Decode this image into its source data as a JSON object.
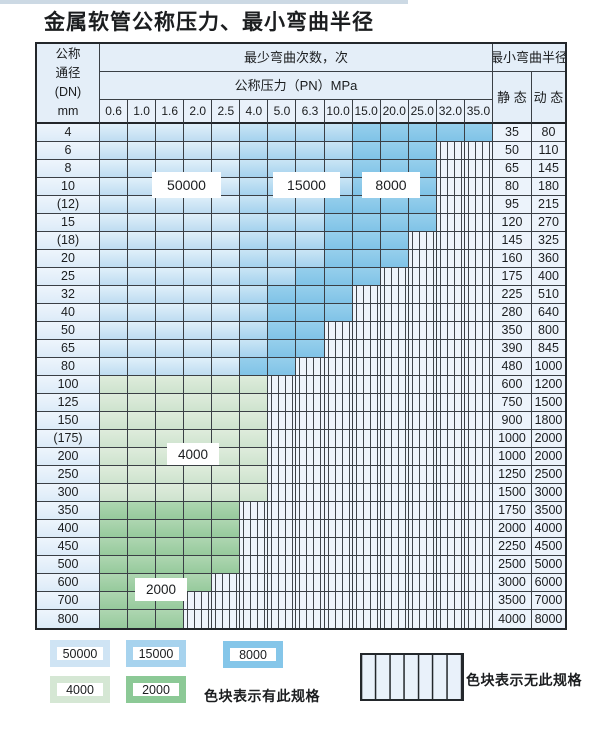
{
  "title": "金属软管公称压力、最小弯曲半径",
  "table": {
    "header": {
      "dn_label_lines": [
        "公称",
        "通径",
        "(DN)",
        "mm"
      ],
      "cycles_label": "最少弯曲次数，次",
      "pressure_label": "公称压力（PN）MPa",
      "radius_label": "最小弯曲半径",
      "static_label": "静 态",
      "dynamic_label": "动 态",
      "pressures": [
        "0.6",
        "1.0",
        "1.6",
        "2.0",
        "2.5",
        "4.0",
        "5.0",
        "6.3",
        "10.0",
        "15.0",
        "20.0",
        "25.0",
        "32.0",
        "35.0"
      ]
    },
    "cell_code_legend": {
      "L": "50000次",
      "M": "15000次",
      "D": "8000次",
      "A": "4000次",
      "B": "2000次",
      "H": "无此规格"
    },
    "rows": [
      {
        "dn": "4",
        "cells": "LLLLLMMMMDDDDD",
        "static": "35",
        "dynamic": "80"
      },
      {
        "dn": "6",
        "cells": "LLLLLMMMMDDDHH",
        "static": "50",
        "dynamic": "110"
      },
      {
        "dn": "8",
        "cells": "LLLLLMMMMDDDHH",
        "static": "65",
        "dynamic": "145"
      },
      {
        "dn": "10",
        "cells": "LLLLLMMMMDDDHH",
        "static": "80",
        "dynamic": "180"
      },
      {
        "dn": "(12)",
        "cells": "LLLLLMMMDDDDHH",
        "static": "95",
        "dynamic": "215"
      },
      {
        "dn": "15",
        "cells": "LLLLLMMMDDDDHH",
        "static": "120",
        "dynamic": "270"
      },
      {
        "dn": "(18)",
        "cells": "LLLLLMMMDDDHHH",
        "static": "145",
        "dynamic": "325"
      },
      {
        "dn": "20",
        "cells": "LLLLLMMMDDDHHH",
        "static": "160",
        "dynamic": "360"
      },
      {
        "dn": "25",
        "cells": "LLLLLMMDDDHHHH",
        "static": "175",
        "dynamic": "400"
      },
      {
        "dn": "32",
        "cells": "LLLLLMDDDHHHHH",
        "static": "225",
        "dynamic": "510"
      },
      {
        "dn": "40",
        "cells": "LLLLLMDDDHHHHH",
        "static": "280",
        "dynamic": "640"
      },
      {
        "dn": "50",
        "cells": "LLLLLMDDHHHHHH",
        "static": "350",
        "dynamic": "800"
      },
      {
        "dn": "65",
        "cells": "LLLLLMDDHHHHHH",
        "static": "390",
        "dynamic": "845"
      },
      {
        "dn": "80",
        "cells": "LLLLLDDHHHHHHH",
        "static": "480",
        "dynamic": "1000"
      },
      {
        "dn": "100",
        "cells": "AAAAAAHHHHHHHH",
        "static": "600",
        "dynamic": "1200"
      },
      {
        "dn": "125",
        "cells": "AAAAAAHHHHHHHH",
        "static": "750",
        "dynamic": "1500"
      },
      {
        "dn": "150",
        "cells": "AAAAAAHHHHHHHH",
        "static": "900",
        "dynamic": "1800"
      },
      {
        "dn": "(175)",
        "cells": "AAAAAAHHHHHHHH",
        "static": "1000",
        "dynamic": "2000"
      },
      {
        "dn": "200",
        "cells": "AAAAAAHHHHHHHH",
        "static": "1000",
        "dynamic": "2000"
      },
      {
        "dn": "250",
        "cells": "AAAAAAHHHHHHHH",
        "static": "1250",
        "dynamic": "2500"
      },
      {
        "dn": "300",
        "cells": "AAAAAAHHHHHHHH",
        "static": "1500",
        "dynamic": "3000"
      },
      {
        "dn": "350",
        "cells": "BBBBBHHHHHHHHH",
        "static": "1750",
        "dynamic": "3500"
      },
      {
        "dn": "400",
        "cells": "BBBBBHHHHHHHHH",
        "static": "2000",
        "dynamic": "4000"
      },
      {
        "dn": "450",
        "cells": "BBBBBHHHHHHHHH",
        "static": "2250",
        "dynamic": "4500"
      },
      {
        "dn": "500",
        "cells": "BBBBBHHHHHHHHH",
        "static": "2500",
        "dynamic": "5000"
      },
      {
        "dn": "600",
        "cells": "BBBBHHHHHHHHHH",
        "static": "3000",
        "dynamic": "6000"
      },
      {
        "dn": "700",
        "cells": "BBBHHHHHHHHHHH",
        "static": "3500",
        "dynamic": "7000"
      },
      {
        "dn": "800",
        "cells": "BBBHHHHHHHHHHH",
        "static": "4000",
        "dynamic": "8000"
      }
    ]
  },
  "overlay_labels": [
    "50000",
    "15000",
    "8000",
    "4000",
    "2000"
  ],
  "legend": {
    "chips": [
      {
        "label": "50000",
        "color": "#cfe4f4"
      },
      {
        "label": "15000",
        "color": "#a7d3ee"
      },
      {
        "label": "8000",
        "color": "#85c6e9"
      },
      {
        "label": "4000",
        "color": "#d5e7d4"
      },
      {
        "label": "2000",
        "color": "#8cc996"
      }
    ],
    "has_spec_note": "色块表示有此规格",
    "no_spec_note": "色块表示无此规格"
  },
  "colors": {
    "band_50000": "#bedcf1",
    "band_15000": "#a5d2ee",
    "band_8000": "#80c3e7",
    "band_4000": "#cee3ce",
    "band_2000": "#96ca9c",
    "hatch_bg": "#eef4fb",
    "header_bg": "#e4eef8",
    "grid_line": "#3a3f45"
  }
}
